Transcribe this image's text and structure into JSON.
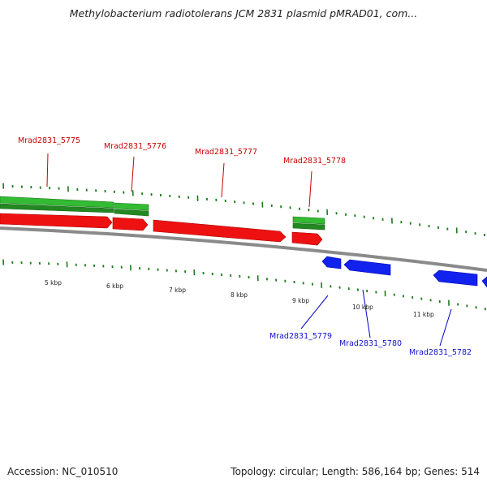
{
  "title": "Methylobacterium radiotolerans JCM 2831 plasmid pMRAD01, com...",
  "footer": {
    "accession": "Accession: NC_010510",
    "topology": "Topology: circular; Length: 586,164 bp; Genes: 514"
  },
  "colors": {
    "forward_gene": "#ee1111",
    "reverse_gene": "#1122ee",
    "rna_feature": "#33bb33",
    "backbone": "#888888",
    "tick": "#1a7a1a"
  },
  "kbp_ticks": [
    "5 kbp",
    "6 kbp",
    "7 kbp",
    "8 kbp",
    "9 kbp",
    "10 kbp",
    "11 kbp"
  ],
  "forward_labels": [
    "Mrad2831_5775",
    "Mrad2831_5776",
    "Mrad2831_5777",
    "Mrad2831_5778"
  ],
  "reverse_labels": [
    "Mrad2831_5779",
    "Mrad2831_5780",
    "Mrad2831_5782"
  ]
}
